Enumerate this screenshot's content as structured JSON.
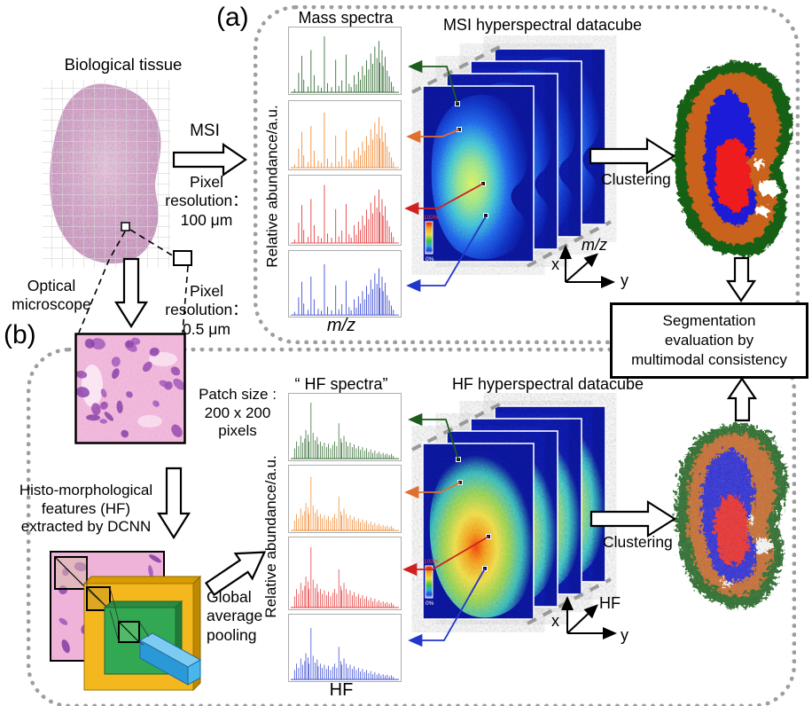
{
  "panels": {
    "a_label": "(a)",
    "b_label": "(b)"
  },
  "tissue": {
    "title": "Biological tissue"
  },
  "msi_step": {
    "arrow_label": "MSI",
    "resolution": "Pixel\nresolution：\n100 μm"
  },
  "optical_step": {
    "label": "Optical\nmicroscope",
    "resolution": "Pixel\nresolution：\n0.5 μm"
  },
  "patch": {
    "size_label": "Patch size :\n200 x 200\npixels"
  },
  "dcnn": {
    "label": "Histo-morphological\nfeatures (HF)\nextracted by DCNN",
    "pooling_label": "Global\naverage\npooling"
  },
  "spectra_a": {
    "title": "Mass spectra",
    "ylabel": "Relative abundance/a.u.",
    "xlabel": "m/z"
  },
  "spectra_b": {
    "title": "“ HF spectra”",
    "ylabel": "Relative abundance/a.u.",
    "xlabel": "HF"
  },
  "datacube_a": {
    "title": "MSI hyperspectral datacube",
    "colorbar_max": "100%",
    "colorbar_min": "0%",
    "axis_x": "x",
    "axis_y": "y",
    "axis_z": "m/z"
  },
  "datacube_b": {
    "title": "HF hyperspectral datacube",
    "colorbar_max": "100%",
    "colorbar_min": "0%",
    "axis_x": "x",
    "axis_y": "y",
    "axis_z": "HF"
  },
  "clustering_a_label": "Clustering",
  "clustering_b_label": "Clustering",
  "evaluation_box": {
    "text": "Segmentation\nevaluation by\nmultimodal consistency"
  },
  "colors": {
    "spectrum_green": "#1d5c1d",
    "spectrum_orange": "#f07d1e",
    "spectrum_red": "#e02424",
    "spectrum_blue": "#2336cc",
    "seg_green": "#176117",
    "seg_orange": "#c9621d",
    "seg_blue": "#1a1ad8",
    "seg_red": "#ee1c1c",
    "panel_border": "#9e9e9e",
    "cube_background": "#0a1490"
  },
  "chart_data": [
    {
      "id": "ms",
      "type": "bar",
      "title": "Mass spectra",
      "xlabel": "m/z",
      "ylabel": "Relative abundance/a.u.",
      "series_colors": [
        "#1d5c1d",
        "#f07d1e",
        "#e02424",
        "#2336cc"
      ],
      "peaks": [
        [
          2,
          6
        ],
        [
          6,
          34
        ],
        [
          9,
          64
        ],
        [
          11,
          22
        ],
        [
          15,
          10
        ],
        [
          18,
          74
        ],
        [
          21,
          30
        ],
        [
          25,
          12
        ],
        [
          28,
          8
        ],
        [
          31,
          98
        ],
        [
          34,
          16
        ],
        [
          38,
          9
        ],
        [
          42,
          57
        ],
        [
          45,
          11
        ],
        [
          48,
          21
        ],
        [
          52,
          66
        ],
        [
          55,
          15
        ],
        [
          57,
          9
        ],
        [
          60,
          30
        ],
        [
          62,
          14
        ],
        [
          64,
          36
        ],
        [
          66,
          22
        ],
        [
          68,
          46
        ],
        [
          70,
          30
        ],
        [
          72,
          56
        ],
        [
          74,
          40
        ],
        [
          76,
          68
        ],
        [
          78,
          50
        ],
        [
          80,
          80
        ],
        [
          82,
          60
        ],
        [
          84,
          90
        ],
        [
          85,
          52
        ],
        [
          87,
          74
        ],
        [
          88,
          46
        ],
        [
          90,
          62
        ],
        [
          92,
          38
        ],
        [
          94,
          28
        ],
        [
          96,
          18
        ],
        [
          98,
          10
        ]
      ]
    },
    {
      "id": "hf",
      "type": "bar",
      "title": "“ HF spectra”",
      "xlabel": "HF",
      "ylabel": "Relative abundance/a.u.",
      "series_colors": [
        "#1d5c1d",
        "#f07d1e",
        "#e02424",
        "#2336cc"
      ],
      "peaks": [
        [
          2,
          18
        ],
        [
          4,
          30
        ],
        [
          6,
          22
        ],
        [
          8,
          40
        ],
        [
          10,
          28
        ],
        [
          12,
          35
        ],
        [
          13,
          50
        ],
        [
          15,
          42
        ],
        [
          16,
          30
        ],
        [
          18,
          98
        ],
        [
          20,
          45
        ],
        [
          22,
          32
        ],
        [
          24,
          38
        ],
        [
          25,
          25
        ],
        [
          27,
          30
        ],
        [
          29,
          22
        ],
        [
          31,
          28
        ],
        [
          33,
          20
        ],
        [
          35,
          26
        ],
        [
          37,
          18
        ],
        [
          39,
          24
        ],
        [
          41,
          30
        ],
        [
          43,
          22
        ],
        [
          45,
          62
        ],
        [
          47,
          35
        ],
        [
          48,
          28
        ],
        [
          50,
          40
        ],
        [
          52,
          30
        ],
        [
          54,
          22
        ],
        [
          56,
          28
        ],
        [
          58,
          20
        ],
        [
          60,
          25
        ],
        [
          62,
          18
        ],
        [
          64,
          22
        ],
        [
          66,
          15
        ],
        [
          68,
          20
        ],
        [
          70,
          14
        ],
        [
          72,
          18
        ],
        [
          74,
          12
        ],
        [
          76,
          16
        ],
        [
          78,
          10
        ],
        [
          80,
          14
        ],
        [
          82,
          9
        ],
        [
          84,
          12
        ],
        [
          86,
          8
        ],
        [
          88,
          10
        ],
        [
          90,
          7
        ],
        [
          92,
          9
        ],
        [
          94,
          6
        ],
        [
          96,
          8
        ],
        [
          98,
          5
        ]
      ]
    }
  ]
}
